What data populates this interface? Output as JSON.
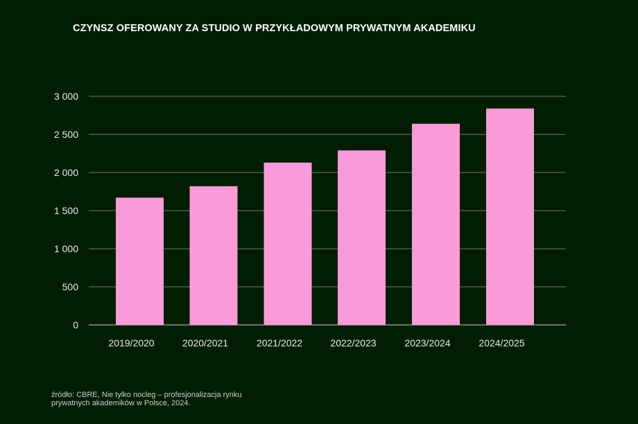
{
  "chart_data": {
    "type": "bar",
    "title": "CZYNSZ OFEROWANY ZA STUDIO W PRZYKŁADOWYM PRYWATNYM AKADEMIKU",
    "categories": [
      "2019/2020",
      "2020/2021",
      "2021/2022",
      "2022/2023",
      "2023/2024",
      "2024/2025"
    ],
    "values": [
      1670,
      1820,
      2130,
      2290,
      2640,
      2840
    ],
    "ylim": [
      0,
      3000
    ],
    "yticks": [
      0,
      500,
      1000,
      1500,
      2000,
      2500,
      3000
    ],
    "ytick_labels": [
      "0",
      "500",
      "1 000",
      "1 500",
      "2 000",
      "2 500",
      "3 000"
    ],
    "xlabel": "",
    "ylabel": "",
    "grid": true,
    "colors": {
      "bar": "#f99bd9",
      "background": "#011e05",
      "grid": "#6f7f6f"
    }
  },
  "source": {
    "line1": "źródło: CBRE, Nie tylko nocleg – profesjonalizacja rynku",
    "line2": "prywatnych akademików w Polsce, 2024."
  }
}
